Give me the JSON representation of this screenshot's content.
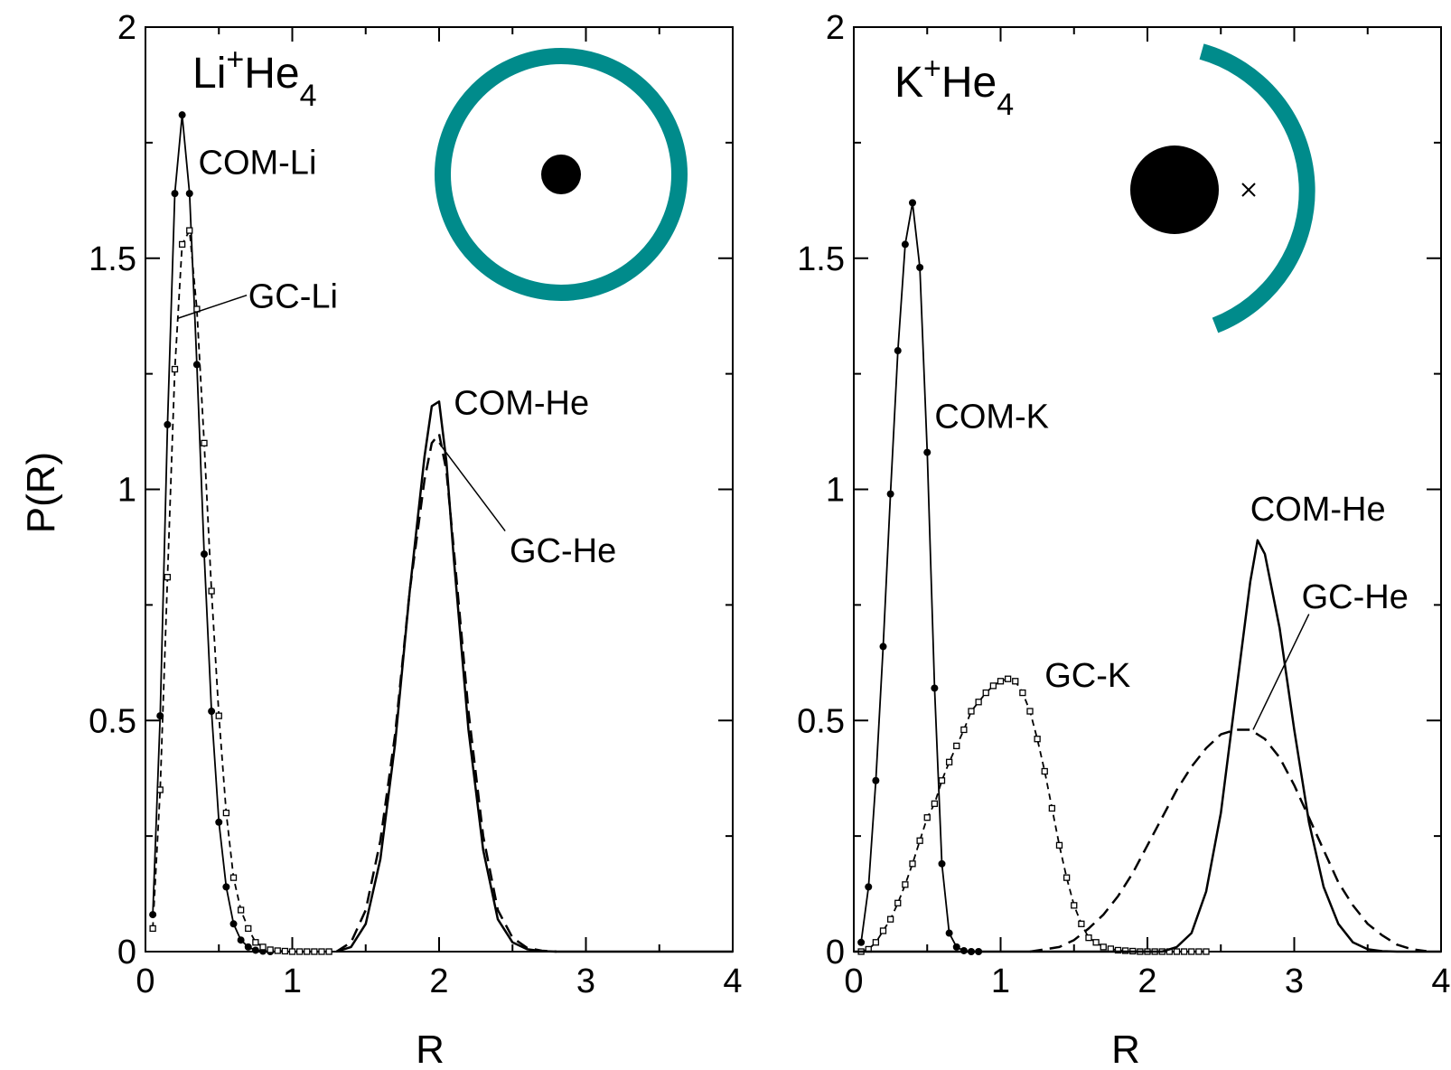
{
  "colors": {
    "accent": "#008b8b",
    "ink": "#000000",
    "background": "#ffffff"
  },
  "shared_axes": {
    "ylabel": "P(R)",
    "xlabel": "R",
    "xlim": [
      0,
      4
    ],
    "ylim": [
      0,
      2
    ],
    "xticks": [
      "0",
      "1",
      "2",
      "3",
      "4"
    ],
    "yticks": [
      "0",
      "0.5",
      "1",
      "1.5",
      "2"
    ]
  },
  "insets": {
    "left": {
      "shape": "full-ring-with-centered-dot",
      "icon": "li-he4-ring-icon"
    },
    "right": {
      "shape": "half-ring-with-offset-dot-and-cross",
      "icon": "k-he4-arc-icon"
    }
  },
  "chart_data": [
    {
      "type": "line",
      "title": {
        "base": "Li",
        "sup": "+",
        "mid": "He",
        "sub": "4"
      },
      "xlabel": "R",
      "ylabel": "P(R)",
      "xlim": [
        0,
        4
      ],
      "ylim": [
        0,
        2
      ],
      "grid": false,
      "series": [
        {
          "label": "COM-Li",
          "style": "solid-dot-markers",
          "x": [
            0.05,
            0.1,
            0.15,
            0.2,
            0.25,
            0.3,
            0.35,
            0.4,
            0.45,
            0.5,
            0.55,
            0.6,
            0.65,
            0.7,
            0.75,
            0.8,
            0.85
          ],
          "y": [
            0.08,
            0.51,
            1.14,
            1.64,
            1.81,
            1.64,
            1.27,
            0.86,
            0.52,
            0.28,
            0.14,
            0.06,
            0.025,
            0.01,
            0.003,
            0.001,
            0.0
          ]
        },
        {
          "label": "GC-Li",
          "style": "dashed-square-markers",
          "x": [
            0.05,
            0.1,
            0.15,
            0.2,
            0.25,
            0.3,
            0.35,
            0.4,
            0.45,
            0.5,
            0.55,
            0.6,
            0.65,
            0.7,
            0.75,
            0.8,
            0.85,
            0.9,
            0.95,
            1.0,
            1.05,
            1.1,
            1.15,
            1.2,
            1.25
          ],
          "y": [
            0.05,
            0.35,
            0.81,
            1.26,
            1.53,
            1.56,
            1.39,
            1.1,
            0.78,
            0.51,
            0.3,
            0.16,
            0.09,
            0.05,
            0.02,
            0.01,
            0.004,
            0.002,
            0.001,
            0.0,
            0.0,
            0.0,
            0.0,
            0.0,
            0.0
          ]
        },
        {
          "label": "COM-He",
          "style": "solid",
          "x": [
            1.3,
            1.4,
            1.5,
            1.6,
            1.7,
            1.8,
            1.9,
            1.95,
            2.0,
            2.05,
            2.1,
            2.2,
            2.3,
            2.4,
            2.5,
            2.6,
            2.7,
            2.8,
            3.0,
            4.0
          ],
          "y": [
            0.0,
            0.01,
            0.06,
            0.2,
            0.45,
            0.78,
            1.07,
            1.18,
            1.19,
            1.06,
            0.85,
            0.48,
            0.22,
            0.07,
            0.02,
            0.005,
            0.001,
            0.0,
            0.0,
            0.0
          ]
        },
        {
          "label": "GC-He",
          "style": "dashed",
          "x": [
            1.3,
            1.4,
            1.5,
            1.6,
            1.7,
            1.8,
            1.9,
            1.95,
            2.0,
            2.05,
            2.1,
            2.2,
            2.3,
            2.4,
            2.5,
            2.6,
            2.7,
            2.8
          ],
          "y": [
            0.0,
            0.02,
            0.09,
            0.24,
            0.47,
            0.78,
            1.02,
            1.1,
            1.12,
            1.04,
            0.87,
            0.52,
            0.25,
            0.09,
            0.03,
            0.008,
            0.002,
            0.0
          ]
        }
      ],
      "annotations": [
        {
          "text": "COM-Li",
          "x": 0.36,
          "y": 1.71
        },
        {
          "text": "GC-Li",
          "x": 0.7,
          "y": 1.42,
          "leader": [
            [
              0.69,
              1.42
            ],
            [
              0.22,
              1.37
            ]
          ]
        },
        {
          "text": "COM-He",
          "x": 2.1,
          "y": 1.19
        },
        {
          "text": "GC-He",
          "x": 2.48,
          "y": 0.87,
          "leader": [
            [
              2.45,
              0.91
            ],
            [
              2.0,
              1.1
            ]
          ]
        }
      ]
    },
    {
      "type": "line",
      "title": {
        "base": "K",
        "sup": "+",
        "mid": "He",
        "sub": "4"
      },
      "xlabel": "R",
      "ylabel": "",
      "xlim": [
        0,
        4
      ],
      "ylim": [
        0,
        2
      ],
      "grid": false,
      "series": [
        {
          "label": "COM-K",
          "style": "solid-dot-markers",
          "x": [
            0.05,
            0.1,
            0.15,
            0.2,
            0.25,
            0.3,
            0.35,
            0.4,
            0.45,
            0.5,
            0.55,
            0.6,
            0.65,
            0.7,
            0.75,
            0.8,
            0.85
          ],
          "y": [
            0.02,
            0.14,
            0.37,
            0.66,
            0.99,
            1.3,
            1.53,
            1.62,
            1.48,
            1.08,
            0.57,
            0.19,
            0.04,
            0.01,
            0.002,
            0.0,
            0.0
          ]
        },
        {
          "label": "GC-K",
          "style": "dashed-square-markers",
          "x": [
            0.05,
            0.1,
            0.15,
            0.2,
            0.25,
            0.3,
            0.35,
            0.4,
            0.45,
            0.5,
            0.55,
            0.6,
            0.65,
            0.7,
            0.75,
            0.8,
            0.85,
            0.9,
            0.95,
            1.0,
            1.05,
            1.1,
            1.15,
            1.2,
            1.25,
            1.3,
            1.35,
            1.4,
            1.45,
            1.5,
            1.55,
            1.6,
            1.65,
            1.7,
            1.75,
            1.8,
            1.85,
            1.9,
            1.95,
            2.0,
            2.05,
            2.1,
            2.15,
            2.2,
            2.25,
            2.3,
            2.35,
            2.4
          ],
          "y": [
            0.0,
            0.005,
            0.02,
            0.045,
            0.07,
            0.105,
            0.145,
            0.19,
            0.24,
            0.29,
            0.32,
            0.37,
            0.41,
            0.445,
            0.48,
            0.52,
            0.54,
            0.56,
            0.575,
            0.585,
            0.59,
            0.585,
            0.56,
            0.52,
            0.46,
            0.39,
            0.31,
            0.23,
            0.16,
            0.1,
            0.06,
            0.03,
            0.02,
            0.01,
            0.006,
            0.003,
            0.002,
            0.001,
            0.0,
            0.0,
            0.0,
            0.0,
            0.0,
            0.0,
            0.0,
            0.0,
            0.0,
            0.0
          ]
        },
        {
          "label": "COM-He",
          "style": "solid",
          "x": [
            0.0,
            2.1,
            2.2,
            2.3,
            2.4,
            2.5,
            2.6,
            2.7,
            2.75,
            2.8,
            2.9,
            3.0,
            3.1,
            3.2,
            3.3,
            3.4,
            3.5,
            3.6,
            3.7,
            4.0
          ],
          "y": [
            0.0,
            0.0,
            0.01,
            0.04,
            0.13,
            0.3,
            0.55,
            0.8,
            0.89,
            0.86,
            0.7,
            0.48,
            0.28,
            0.14,
            0.06,
            0.02,
            0.005,
            0.001,
            0.0,
            0.0
          ]
        },
        {
          "label": "GC-He",
          "style": "dashed",
          "x": [
            1.2,
            1.4,
            1.5,
            1.6,
            1.7,
            1.8,
            1.9,
            2.0,
            2.1,
            2.2,
            2.3,
            2.4,
            2.5,
            2.6,
            2.7,
            2.8,
            2.9,
            3.0,
            3.1,
            3.2,
            3.3,
            3.4,
            3.5,
            3.6,
            3.7,
            3.8,
            3.9
          ],
          "y": [
            0.0,
            0.01,
            0.025,
            0.05,
            0.08,
            0.12,
            0.17,
            0.23,
            0.29,
            0.35,
            0.4,
            0.44,
            0.47,
            0.48,
            0.48,
            0.46,
            0.42,
            0.36,
            0.29,
            0.22,
            0.15,
            0.1,
            0.06,
            0.035,
            0.015,
            0.005,
            0.001
          ]
        }
      ],
      "annotations": [
        {
          "text": "COM-K",
          "x": 0.55,
          "y": 1.16
        },
        {
          "text": "GC-K",
          "x": 1.3,
          "y": 0.6
        },
        {
          "text": "COM-He",
          "x": 2.7,
          "y": 0.96
        },
        {
          "text": "GC-He",
          "x": 3.05,
          "y": 0.77,
          "leader": [
            [
              3.1,
              0.73
            ],
            [
              2.72,
              0.48
            ]
          ]
        }
      ]
    }
  ]
}
